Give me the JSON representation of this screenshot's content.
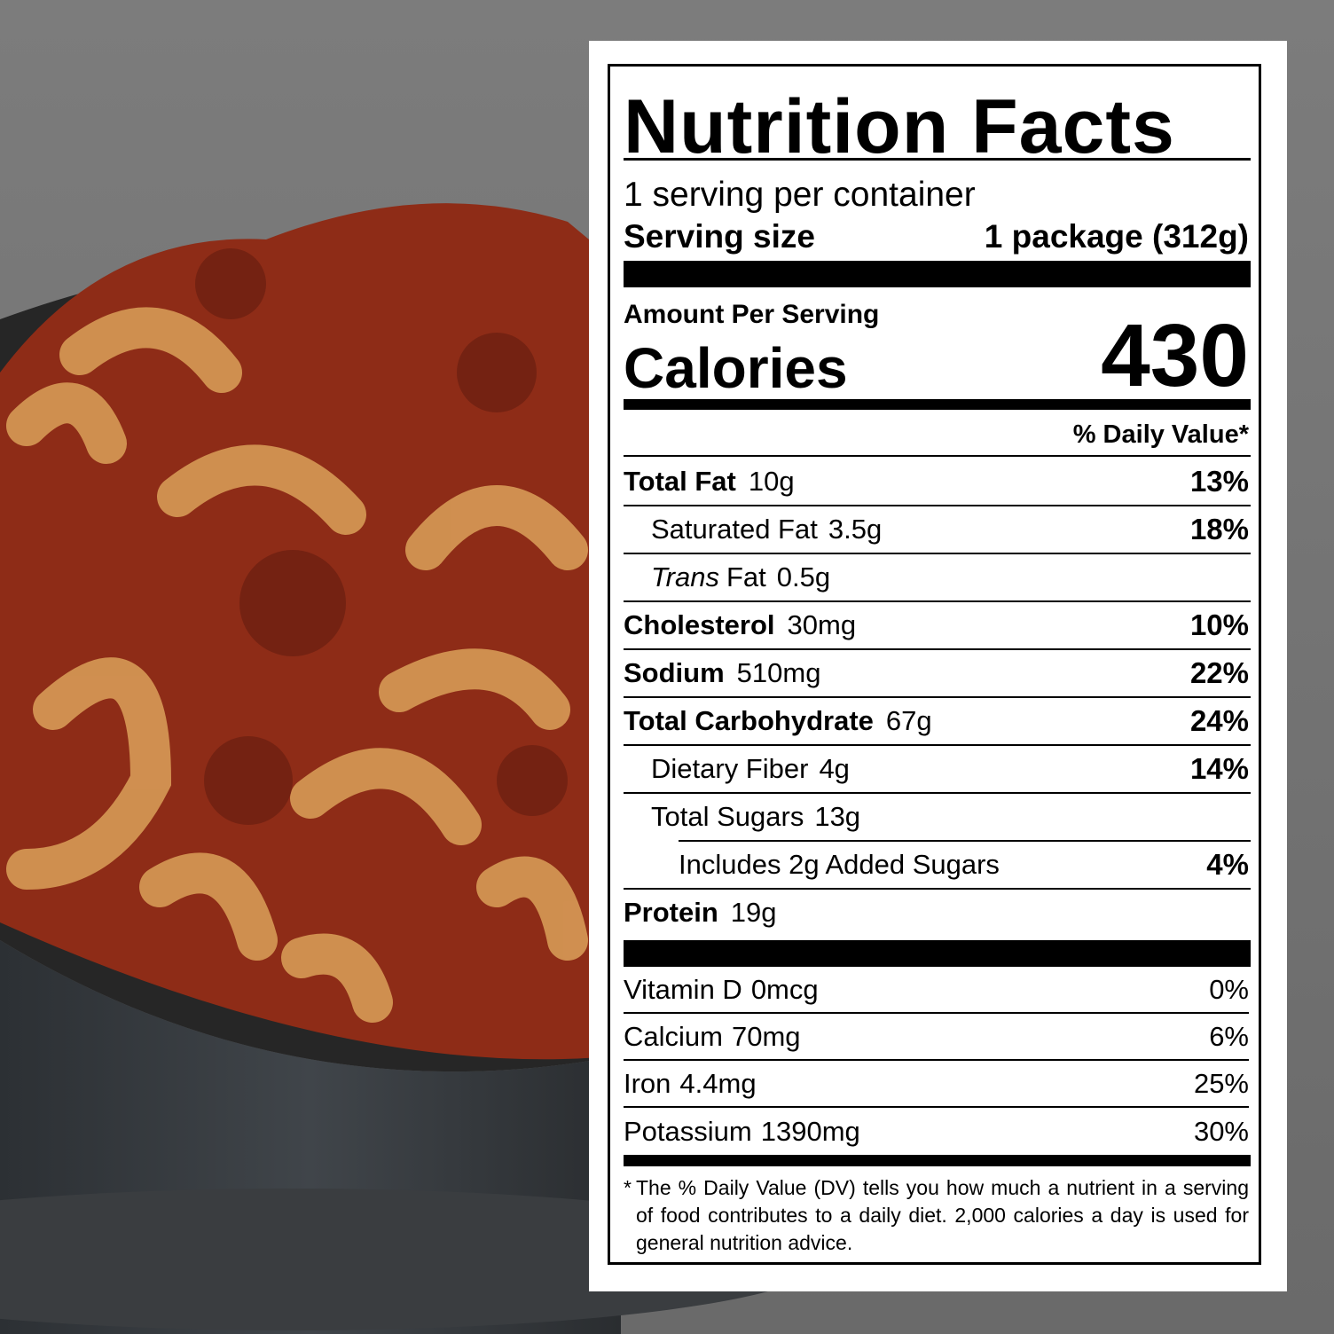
{
  "label": {
    "title": "Nutrition Facts",
    "servings": "1 serving per container",
    "serving_size": {
      "label": "Serving size",
      "value": "1 package (312g)"
    },
    "amount_per_serving": "Amount Per Serving",
    "calories": {
      "label": "Calories",
      "value": "430"
    },
    "daily_value_header": "% Daily Value*",
    "nutrients": [
      {
        "name": "Total Fat",
        "amount": "10g",
        "dv": "13%",
        "bold": true,
        "indent": 0
      },
      {
        "name": "Saturated Fat",
        "amount": "3.5g",
        "dv": "18%",
        "bold": false,
        "indent": 1
      },
      {
        "italic": "Trans",
        "name": "Fat",
        "amount": "0.5g",
        "bold": false,
        "indent": 1
      },
      {
        "name": "Cholesterol",
        "amount": "30mg",
        "dv": "10%",
        "bold": true,
        "indent": 0
      },
      {
        "name": "Sodium",
        "amount": "510mg",
        "dv": "22%",
        "bold": true,
        "indent": 0
      },
      {
        "name": "Total Carbohydrate",
        "amount": "67g",
        "dv": "24%",
        "bold": true,
        "indent": 0
      },
      {
        "name": "Dietary Fiber",
        "amount": "4g",
        "dv": "14%",
        "bold": false,
        "indent": 1
      },
      {
        "name": "Total Sugars",
        "amount": "13g",
        "bold": false,
        "indent": 1
      },
      {
        "name": "Includes 2g Added Sugars",
        "dv": "4%",
        "bold": false,
        "indent": 2
      },
      {
        "name": "Protein",
        "amount": "19g",
        "bold": true,
        "indent": 0
      }
    ],
    "vitamins": [
      {
        "name": "Vitamin D",
        "amount": "0mcg",
        "dv": "0%"
      },
      {
        "name": "Calcium",
        "amount": "70mg",
        "dv": "6%"
      },
      {
        "name": "Iron",
        "amount": "4.4mg",
        "dv": "25%"
      },
      {
        "name": "Potassium",
        "amount": "1390mg",
        "dv": "30%"
      }
    ],
    "footnote": {
      "marker": "*",
      "text": "The % Daily Value (DV) tells you how much a nutrient in a serving of food contributes to a daily diet. 2,000 calories a day is used for general nutrition advice."
    }
  }
}
